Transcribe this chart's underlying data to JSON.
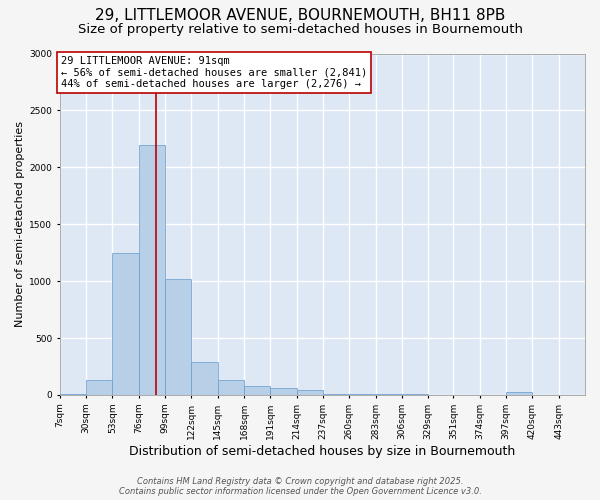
{
  "title_line1": "29, LITTLEMOOR AVENUE, BOURNEMOUTH, BH11 8PB",
  "title_line2": "Size of property relative to semi-detached houses in Bournemouth",
  "xlabel": "Distribution of semi-detached houses by size in Bournemouth",
  "ylabel": "Number of semi-detached properties",
  "bin_edges": [
    7,
    30,
    53,
    76,
    99,
    122,
    145,
    168,
    191,
    214,
    237,
    260,
    283,
    306,
    329,
    351,
    374,
    397,
    420,
    443,
    466
  ],
  "bar_heights": [
    10,
    130,
    1250,
    2200,
    1020,
    290,
    130,
    80,
    60,
    40,
    10,
    5,
    5,
    5,
    2,
    2,
    2,
    30,
    2,
    2
  ],
  "bar_color": "#b8cfe8",
  "bar_edgecolor": "#6699cc",
  "plot_bg_color": "#dde8f4",
  "fig_bg_color": "#f5f5f5",
  "grid_color": "#ffffff",
  "property_value": 91,
  "property_label": "29 LITTLEMOOR AVENUE: 91sqm",
  "pct_smaller": 56,
  "pct_smaller_count": 2841,
  "pct_larger": 44,
  "pct_larger_count": 2276,
  "vline_color": "#bb0000",
  "ann_box_edgecolor": "#bb0000",
  "footer_line1": "Contains HM Land Registry data © Crown copyright and database right 2025.",
  "footer_line2": "Contains public sector information licensed under the Open Government Licence v3.0.",
  "title_fontsize": 11,
  "subtitle_fontsize": 9.5,
  "ylabel_fontsize": 8,
  "xlabel_fontsize": 9,
  "tick_fontsize": 6.5,
  "footer_fontsize": 6,
  "annotation_fontsize": 7.5,
  "ylim_max": 3000,
  "yticks": [
    0,
    500,
    1000,
    1500,
    2000,
    2500,
    3000
  ]
}
